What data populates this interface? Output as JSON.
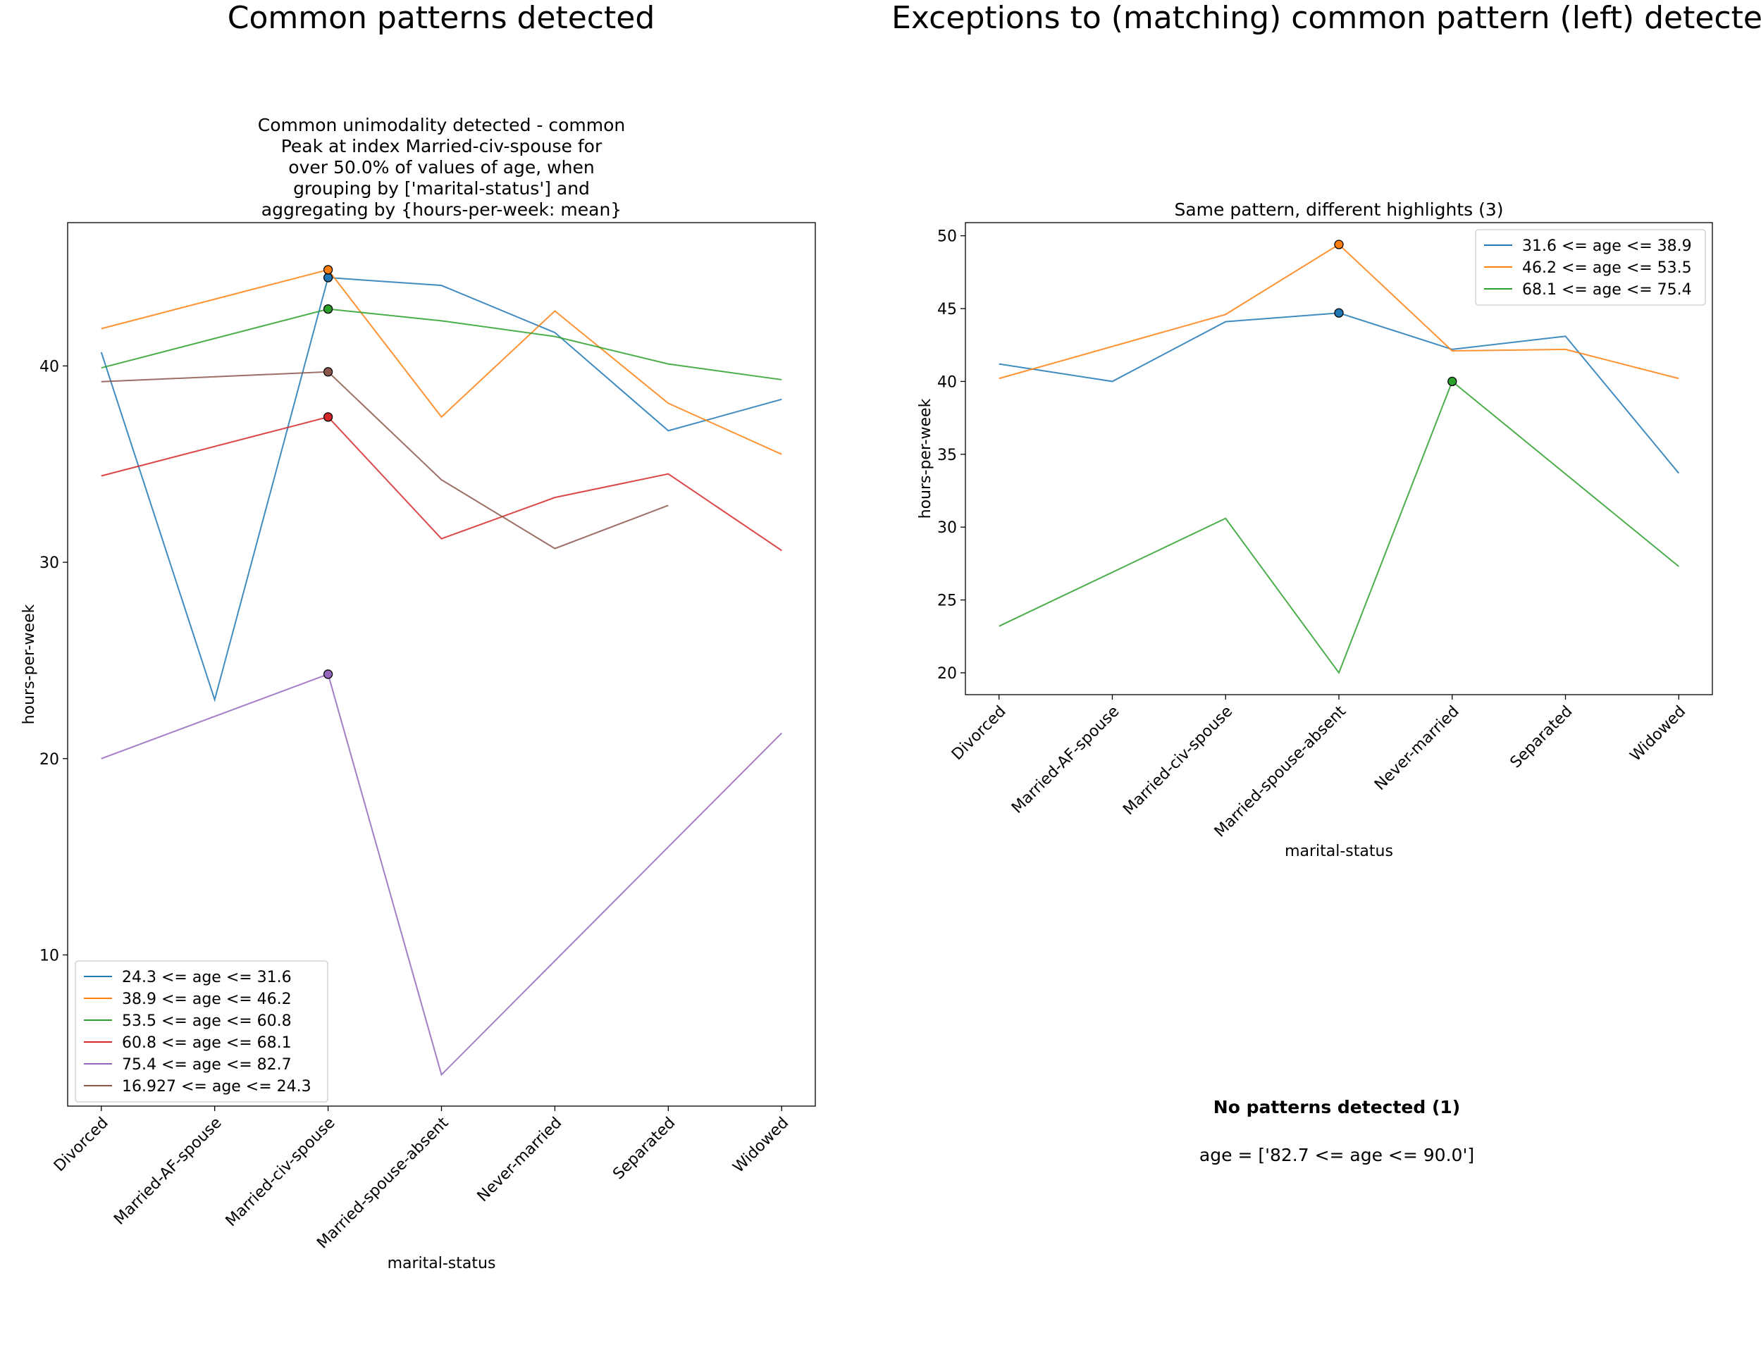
{
  "figure": {
    "left_title": "Common patterns detected",
    "right_title": "Exceptions to (matching) common pattern (left) detected"
  },
  "colors": {
    "c0": "#1f77b4",
    "c1": "#ff7f0e",
    "c2": "#2ca02c",
    "c3": "#d62728",
    "c4": "#9467bd",
    "c5": "#8c564b"
  },
  "no_patterns": {
    "title": "No patterns detected (1)",
    "text": "age = ['82.7 <= age <= 90.0']"
  },
  "chart_data": [
    {
      "type": "line",
      "title": "Common unimodality detected - common\nPeak at index Married-civ-spouse for\nover 50.0% of values of age, when\ngrouping by ['marital-status'] and\naggregating by {hours-per-week: mean}",
      "xlabel": "marital-status",
      "ylabel": "hours-per-week",
      "categories": [
        "Divorced",
        "Married-AF-spouse",
        "Married-civ-spouse",
        "Married-spouse-absent",
        "Never-married",
        "Separated",
        "Widowed"
      ],
      "ylim": [
        2.3,
        47.3
      ],
      "yticks": [
        10,
        20,
        30,
        40
      ],
      "legend_position": "lower-left",
      "highlight_index": 2,
      "series": [
        {
          "name": "24.3 <= age <= 31.6",
          "color": "#1f77b4",
          "values": [
            40.7,
            23.0,
            44.5,
            44.1,
            41.7,
            36.7,
            38.3
          ]
        },
        {
          "name": "38.9 <= age <= 46.2",
          "color": "#ff7f0e",
          "values": [
            41.9,
            null,
            44.9,
            37.4,
            42.8,
            38.1,
            35.5
          ]
        },
        {
          "name": "53.5 <= age <= 60.8",
          "color": "#2ca02c",
          "values": [
            39.9,
            null,
            42.9,
            42.3,
            41.5,
            40.1,
            39.3
          ]
        },
        {
          "name": "60.8 <= age <= 68.1",
          "color": "#d62728",
          "values": [
            34.4,
            null,
            37.4,
            31.2,
            33.3,
            34.5,
            30.6
          ]
        },
        {
          "name": "75.4 <= age <= 82.7",
          "color": "#9467bd",
          "values": [
            20.0,
            null,
            24.3,
            3.9,
            null,
            null,
            21.3
          ]
        },
        {
          "name": "16.927 <= age <= 24.3",
          "color": "#8c564b",
          "values": [
            39.2,
            null,
            39.7,
            34.2,
            30.7,
            32.9,
            null
          ]
        }
      ]
    },
    {
      "type": "line",
      "title": "Same pattern, different highlights (3)",
      "xlabel": "marital-status",
      "ylabel": "hours-per-week",
      "categories": [
        "Divorced",
        "Married-AF-spouse",
        "Married-civ-spouse",
        "Married-spouse-absent",
        "Never-married",
        "Separated",
        "Widowed"
      ],
      "ylim": [
        18.5,
        50.9
      ],
      "yticks": [
        20,
        25,
        30,
        35,
        40,
        45,
        50
      ],
      "legend_position": "upper-right",
      "series": [
        {
          "name": "31.6 <= age <= 38.9",
          "color": "#1f77b4",
          "values": [
            41.2,
            40.0,
            44.1,
            44.7,
            42.2,
            43.1,
            33.7
          ],
          "highlight_index": 3
        },
        {
          "name": "46.2 <= age <= 53.5",
          "color": "#ff7f0e",
          "values": [
            40.2,
            null,
            44.6,
            49.4,
            42.1,
            42.2,
            40.2
          ],
          "highlight_index": 3
        },
        {
          "name": "68.1 <= age <= 75.4",
          "color": "#2ca02c",
          "values": [
            23.2,
            null,
            30.6,
            20.0,
            40.0,
            null,
            27.3
          ],
          "highlight_index": 4
        }
      ]
    }
  ]
}
